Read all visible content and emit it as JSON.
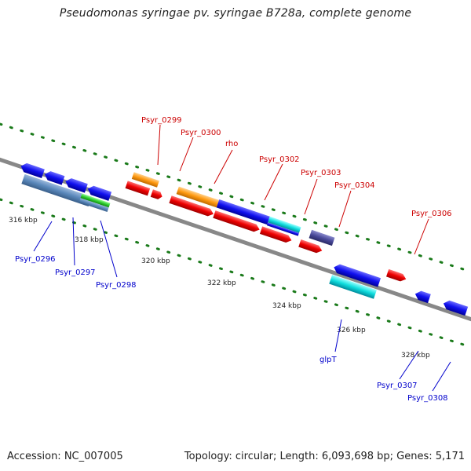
{
  "title": "Pseudomonas syringae pv. syringae B728a, complete genome",
  "footer": {
    "accession": "Accession: NC_007005",
    "summary": "Topology: circular; Length: 6,093,698 bp; Genes: 5,171"
  },
  "ticks": [
    "316 kbp",
    "318 kbp",
    "320 kbp",
    "322 kbp",
    "324 kbp",
    "326 kbp",
    "328 kbp"
  ],
  "genes_top": [
    "Psyr_0299",
    "Psyr_0300",
    "rho",
    "Psyr_0302",
    "Psyr_0303",
    "Psyr_0304",
    "Psyr_0306"
  ],
  "genes_bottom": [
    "Psyr_0296",
    "Psyr_0297",
    "Psyr_0298",
    "glpT",
    "Psyr_0307",
    "Psyr_0308"
  ],
  "colors": {
    "forward_label": "#cc0000",
    "reverse_label": "#0000cc",
    "backbone": "#888888",
    "tick_dot": "#1a7a1a"
  }
}
